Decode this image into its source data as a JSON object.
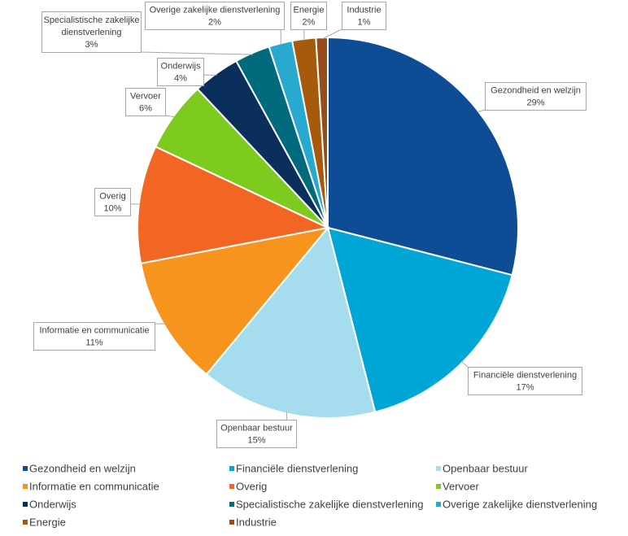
{
  "chart_data": {
    "type": "pie",
    "title": "",
    "unit": "%",
    "legend_position": "bottom",
    "slices": [
      {
        "label": "Gezondheid en welzijn",
        "value": 29,
        "color": "#0F4C96"
      },
      {
        "label": "Financiële dienstverlening",
        "value": 17,
        "color": "#00A6D6"
      },
      {
        "label": "Openbaar bestuur",
        "value": 15,
        "color": "#A5DDEE"
      },
      {
        "label": "Informatie en communicatie",
        "value": 11,
        "color": "#F7941D"
      },
      {
        "label": "Overig",
        "value": 10,
        "color": "#F26522"
      },
      {
        "label": "Vervoer",
        "value": 6,
        "color": "#7DCB1F"
      },
      {
        "label": "Onderwijs",
        "value": 4,
        "color": "#0B2F5B"
      },
      {
        "label": "Specialistische zakelijke dienstverlening",
        "value": 3,
        "color": "#006B7D"
      },
      {
        "label": "Overige zakelijke dienstverlening",
        "value": 2,
        "color": "#27A9D0"
      },
      {
        "label": "Energie",
        "value": 2,
        "color": "#A55A0C"
      },
      {
        "label": "Industrie",
        "value": 1,
        "color": "#9B4A1A"
      }
    ],
    "callout_lines": {
      "Specialistische zakelijke dienstverlening": [
        "Specialistische zakelijke",
        "dienstverlening"
      ],
      "Overige zakelijke dienstverlening": [
        "Overige zakelijke dienstverlening"
      ],
      "Informatie en communicatie": [
        "Informatie en communicatie"
      ],
      "Financiële dienstverlening": [
        "Financiële dienstverlening"
      ],
      "Gezondheid en welzijn": [
        "Gezondheid en welzijn"
      ],
      "Openbaar bestuur": [
        "Openbaar bestuur"
      ],
      "Overig": [
        "Overig"
      ],
      "Vervoer": [
        "Vervoer"
      ],
      "Onderwijs": [
        "Onderwijs"
      ],
      "Energie": [
        "Energie"
      ],
      "Industrie": [
        "Industrie"
      ]
    }
  }
}
